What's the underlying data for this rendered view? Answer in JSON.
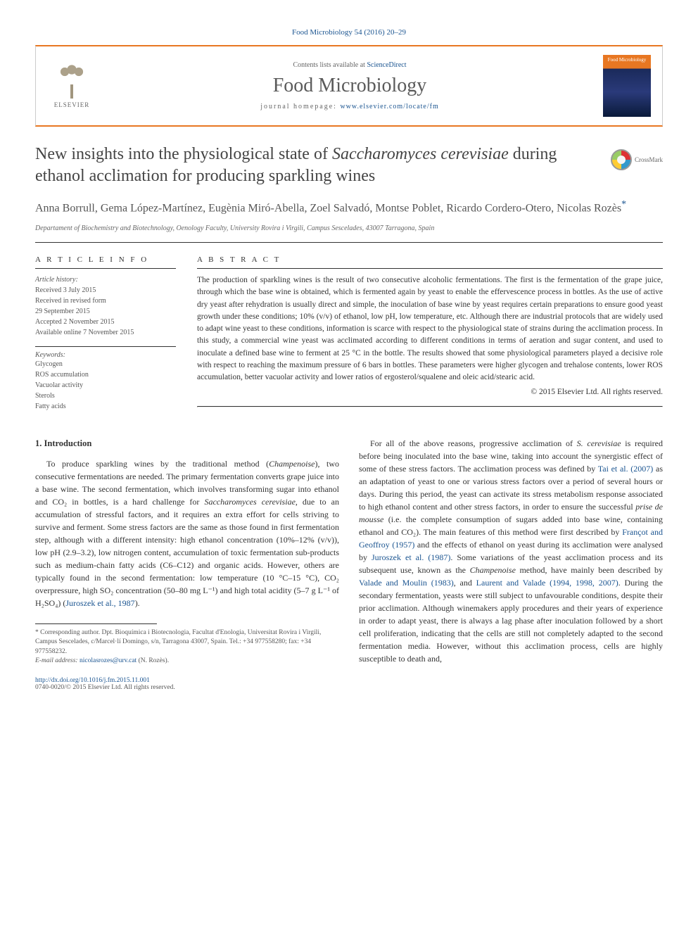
{
  "journal_ref": "Food Microbiology 54 (2016) 20–29",
  "header": {
    "contents_prefix": "Contents lists available at ",
    "contents_link": "ScienceDirect",
    "journal_name": "Food Microbiology",
    "homepage_prefix": "journal homepage: ",
    "homepage_url": "www.elsevier.com/locate/fm",
    "publisher": "ELSEVIER",
    "cover_label": "Food Microbiology"
  },
  "title": {
    "pre": "New insights into the physiological state of ",
    "italic": "Saccharomyces cerevisiae",
    "post": " during ethanol acclimation for producing sparkling wines"
  },
  "crossmark": "CrossMark",
  "authors": "Anna Borrull, Gema López-Martínez, Eugènia Miró-Abella, Zoel Salvadó, Montse Poblet, Ricardo Cordero-Otero, Nicolas Rozès",
  "corr_mark": "*",
  "affiliation": "Departament of Biochemistry and Biotechnology, Oenology Faculty, University Rovira i Virgili, Campus Sescelades, 43007 Tarragona, Spain",
  "info": {
    "heading": "A R T I C L E   I N F O",
    "history_label": "Article history:",
    "received": "Received 3 July 2015",
    "revised1": "Received in revised form",
    "revised2": "29 September 2015",
    "accepted": "Accepted 2 November 2015",
    "online": "Available online 7 November 2015",
    "keywords_label": "Keywords:",
    "kw1": "Glycogen",
    "kw2": "ROS accumulation",
    "kw3": "Vacuolar activity",
    "kw4": "Sterols",
    "kw5": "Fatty acids"
  },
  "abstract": {
    "heading": "A B S T R A C T",
    "text": "The production of sparkling wines is the result of two consecutive alcoholic fermentations. The first is the fermentation of the grape juice, through which the base wine is obtained, which is fermented again by yeast to enable the effervescence process in bottles. As the use of active dry yeast after rehydration is usually direct and simple, the inoculation of base wine by yeast requires certain preparations to ensure good yeast growth under these conditions; 10% (v/v) of ethanol, low pH, low temperature, etc. Although there are industrial protocols that are widely used to adapt wine yeast to these conditions, information is scarce with respect to the physiological state of strains during the acclimation process. In this study, a commercial wine yeast was acclimated according to different conditions in terms of aeration and sugar content, and used to inoculate a defined base wine to ferment at 25 °C in the bottle. The results showed that some physiological parameters played a decisive role with respect to reaching the maximum pressure of 6 bars in bottles. These parameters were higher glycogen and trehalose contents, lower ROS accumulation, better vacuolar activity and lower ratios of ergosterol/squalene and oleic acid/stearic acid.",
    "copyright": "© 2015 Elsevier Ltd. All rights reserved."
  },
  "body": {
    "section_num": "1.",
    "section_title": "Introduction",
    "col1_p1_a": "To produce sparkling wines by the traditional method (",
    "col1_p1_b": "Champenoise",
    "col1_p1_c": "), two consecutive fermentations are needed. The primary fermentation converts grape juice into a base wine. The second fermentation, which involves transforming sugar into ethanol and CO₂ in bottles, is a hard challenge for ",
    "col1_p1_d": "Saccharomyces cerevisiae",
    "col1_p1_e": ", due to an accumulation of stressful factors, and it requires an extra effort for cells striving to survive and ferment. Some stress factors are the same as those found in first fermentation step, although with a different intensity: high ethanol concentration (10%–12% (v/v)), low pH (2.9–3.2), low nitrogen content, accumulation of toxic fermentation sub-products such as medium-chain fatty acids (C6–C12) and organic acids. However, others are typically found in the second fermentation: low temperature (10 °C–15 °C), CO₂ overpressure, high SO₂ concentration (50–80 mg L⁻¹) and high total acidity (5–7 g L⁻¹ of H₂SO₄) (",
    "col1_p1_ref": "Juroszek et al., 1987",
    "col1_p1_f": ").",
    "col2_p1_a": "For all of the above reasons, progressive acclimation of ",
    "col2_p1_b": "S. cerevisiae",
    "col2_p1_c": " is required before being inoculated into the base wine, taking into account the synergistic effect of some of these stress factors. The acclimation process was defined by ",
    "col2_ref1": "Tai et al. (2007)",
    "col2_p1_d": " as an adaptation of yeast to one or various stress factors over a period of several hours or days. During this period, the yeast can activate its stress metabolism response associated to high ethanol content and other stress factors, in order to ensure the successful ",
    "col2_p1_e": "prise de mousse",
    "col2_p1_f": " (i.e. the complete consumption of sugars added into base wine, containing ethanol and CO₂). The main features of this method were first described by ",
    "col2_ref2": "Françot and Geoffroy (1957)",
    "col2_p1_g": " and the effects of ethanol on yeast during its acclimation were analysed by ",
    "col2_ref3": "Juroszek et al. (1987)",
    "col2_p1_h": ". Some variations of the yeast acclimation process and its subsequent use, known as the ",
    "col2_p1_i": "Champenoise",
    "col2_p1_j": " method, have mainly been described by ",
    "col2_ref4": "Valade and Moulin (1983)",
    "col2_p1_k": ", and ",
    "col2_ref5": "Laurent and Valade (1994, 1998, 2007)",
    "col2_p1_l": ". During the secondary fermentation, yeasts were still subject to unfavourable conditions, despite their prior acclimation. Although winemakers apply procedures and their years of experience in order to adapt yeast, there is always a lag phase after inoculation followed by a short cell proliferation, indicating that the cells are still not completely adapted to the second fermentation media. However, without this acclimation process, cells are highly susceptible to death and,"
  },
  "footnote": {
    "corr": "* Corresponding author. Dpt. Bioquímica i Biotecnologia, Facultat d'Enologia, Universitat Rovira i Virgili, Campus Sescelades, c/Marcel·lí Domingo, s/n, Tarragona 43007, Spain. Tel.: +34 977558280; fax: +34 977558232.",
    "email_label": "E-mail address: ",
    "email": "nicolasrozes@urv.cat",
    "email_name": " (N. Rozès)."
  },
  "footer": {
    "doi": "http://dx.doi.org/10.1016/j.fm.2015.11.001",
    "issn": "0740-0020/© 2015 Elsevier Ltd. All rights reserved."
  },
  "colors": {
    "accent_orange": "#e87722",
    "link_blue": "#1a5490",
    "text_gray": "#555555"
  }
}
